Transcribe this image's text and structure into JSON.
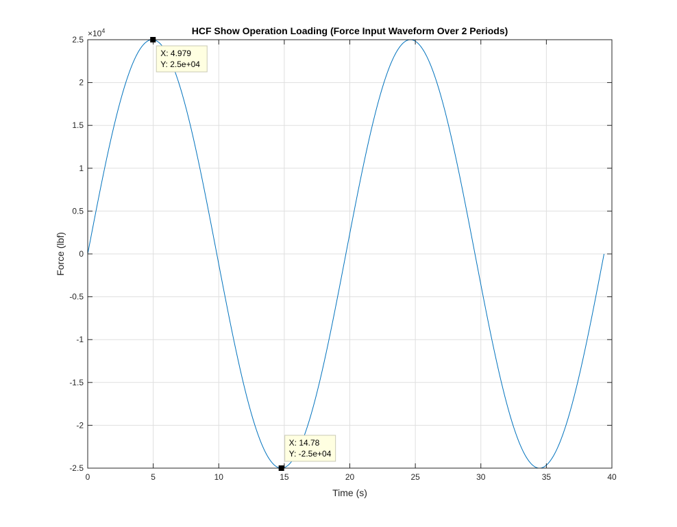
{
  "chart_data": {
    "type": "line",
    "title": "HCF Show Operation Loading (Force Input Waveform Over 2 Periods)",
    "xlabel": "Time (s)",
    "ylabel": "Force (lbf)",
    "y_exponent_label": "×10",
    "y_exponent_power": "4",
    "xlim": [
      0,
      40
    ],
    "ylim": [
      -25000,
      25000
    ],
    "x_ticks": [
      0,
      5,
      10,
      15,
      20,
      25,
      30,
      35,
      40
    ],
    "x_tick_labels": [
      "0",
      "5",
      "10",
      "15",
      "20",
      "25",
      "30",
      "35",
      "40"
    ],
    "y_ticks": [
      -25000,
      -20000,
      -15000,
      -10000,
      -5000,
      0,
      5000,
      10000,
      15000,
      20000,
      25000
    ],
    "y_tick_labels": [
      "-2.5",
      "-2",
      "-1.5",
      "-1",
      "-0.5",
      "0",
      "0.5",
      "1",
      "1.5",
      "2",
      "2.5"
    ],
    "grid": true,
    "series": [
      {
        "function": "sine",
        "amplitude": 25000,
        "period": 19.7,
        "x_start": 0,
        "x_end": 39.4,
        "color": "#0072BD"
      }
    ],
    "data_tips": [
      {
        "x": 4.979,
        "y": 25000,
        "x_text": "X: 4.979",
        "y_text": "Y: 2.5e+04",
        "placement": "below-right"
      },
      {
        "x": 14.78,
        "y": -25000,
        "x_text": "X: 14.78",
        "y_text": "Y: -2.5e+04",
        "placement": "above-right"
      }
    ]
  }
}
